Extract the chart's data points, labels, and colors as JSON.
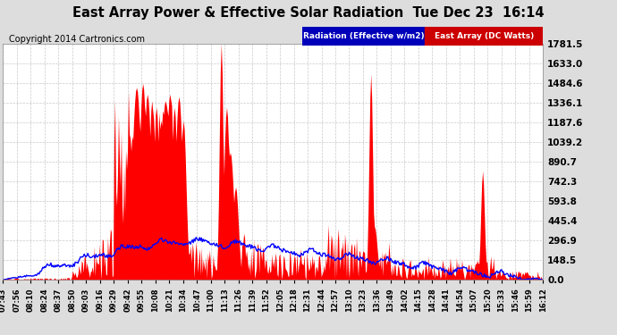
{
  "title": "East Array Power & Effective Solar Radiation  Tue Dec 23  16:14",
  "copyright": "Copyright 2014 Cartronics.com",
  "legend_radiation": "Radiation (Effective w/m2)",
  "legend_east": "East Array (DC Watts)",
  "legend_radiation_bg": "#0000bb",
  "legend_east_bg": "#cc0000",
  "ymin": 0.0,
  "ymax": 1781.5,
  "yticks": [
    0.0,
    148.5,
    296.9,
    445.4,
    593.8,
    742.3,
    890.7,
    1039.2,
    1187.6,
    1336.1,
    1484.6,
    1633.0,
    1781.5
  ],
  "xtick_labels": [
    "07:43",
    "07:56",
    "08:10",
    "08:24",
    "08:37",
    "08:50",
    "09:03",
    "09:16",
    "09:29",
    "09:42",
    "09:55",
    "10:08",
    "10:21",
    "10:34",
    "10:47",
    "11:00",
    "11:13",
    "11:26",
    "11:39",
    "11:52",
    "12:05",
    "12:18",
    "12:31",
    "12:44",
    "12:57",
    "13:10",
    "13:23",
    "13:36",
    "13:49",
    "14:02",
    "14:15",
    "14:28",
    "14:41",
    "14:54",
    "15:07",
    "15:20",
    "15:33",
    "15:46",
    "15:59",
    "16:12"
  ],
  "plot_bg_color": "#ffffff",
  "fig_bg_color": "#dddddd",
  "grid_color": "#aaaaaa",
  "red_color": "#ff0000",
  "blue_color": "#0000ff",
  "num_points": 600
}
